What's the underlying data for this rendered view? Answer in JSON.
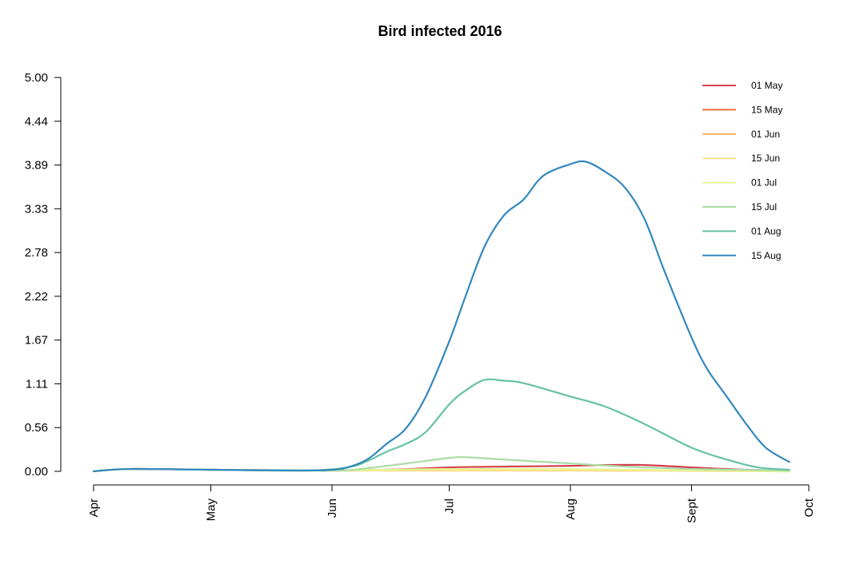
{
  "chart_data": {
    "type": "line",
    "title": "Bird infected 2016",
    "xlabel": "",
    "ylabel": "",
    "x_ticks": [
      "Apr",
      "May",
      "Jun",
      "Jul",
      "Aug",
      "Sept",
      "Oct"
    ],
    "xlim": [
      "2016-04-01",
      "2016-10-01"
    ],
    "y_ticks": [
      "0.00",
      "0.56",
      "1.11",
      "1.67",
      "2.22",
      "2.78",
      "3.33",
      "3.89",
      "4.44",
      "5.00"
    ],
    "ylim": [
      0,
      5
    ],
    "grid": false,
    "legend_position": "top-right",
    "series": [
      {
        "name": "01 May",
        "color": "#d53e4f",
        "points": [
          [
            "2016-04-01",
            0
          ],
          [
            "2016-04-10",
            0.03
          ],
          [
            "2016-05-01",
            0.02
          ],
          [
            "2016-06-01",
            0.01
          ],
          [
            "2016-06-15",
            0.02
          ],
          [
            "2016-07-01",
            0.05
          ],
          [
            "2016-07-15",
            0.06
          ],
          [
            "2016-08-01",
            0.07
          ],
          [
            "2016-08-10",
            0.08
          ],
          [
            "2016-08-20",
            0.08
          ],
          [
            "2016-09-01",
            0.05
          ],
          [
            "2016-09-15",
            0.02
          ],
          [
            "2016-09-26",
            0.01
          ]
        ]
      },
      {
        "name": "15 May",
        "color": "#f46d43",
        "points": [
          [
            "2016-04-01",
            0
          ],
          [
            "2016-04-10",
            0.03
          ],
          [
            "2016-05-01",
            0.02
          ],
          [
            "2016-06-01",
            0.01
          ],
          [
            "2016-06-15",
            0.02
          ],
          [
            "2016-07-01",
            0.03
          ],
          [
            "2016-08-01",
            0.02
          ],
          [
            "2016-09-01",
            0.01
          ],
          [
            "2016-09-26",
            0.0
          ]
        ]
      },
      {
        "name": "01 Jun",
        "color": "#fdae61",
        "points": [
          [
            "2016-04-01",
            0
          ],
          [
            "2016-04-10",
            0.03
          ],
          [
            "2016-05-01",
            0.02
          ],
          [
            "2016-06-01",
            0.01
          ],
          [
            "2016-06-15",
            0.01
          ],
          [
            "2016-07-01",
            0.01
          ],
          [
            "2016-08-01",
            0.01
          ],
          [
            "2016-09-26",
            0.0
          ]
        ]
      },
      {
        "name": "15 Jun",
        "color": "#fee08b",
        "points": [
          [
            "2016-04-01",
            0
          ],
          [
            "2016-04-10",
            0.03
          ],
          [
            "2016-05-01",
            0.02
          ],
          [
            "2016-06-01",
            0.01
          ],
          [
            "2016-06-15",
            0.01
          ],
          [
            "2016-07-01",
            0.01
          ],
          [
            "2016-08-01",
            0.01
          ],
          [
            "2016-09-26",
            0.0
          ]
        ]
      },
      {
        "name": "01 Jul",
        "color": "#e6f598",
        "points": [
          [
            "2016-04-01",
            0
          ],
          [
            "2016-04-10",
            0.03
          ],
          [
            "2016-05-01",
            0.02
          ],
          [
            "2016-06-01",
            0.01
          ],
          [
            "2016-06-15",
            0.02
          ],
          [
            "2016-07-01",
            0.03
          ],
          [
            "2016-08-01",
            0.03
          ],
          [
            "2016-09-01",
            0.01
          ],
          [
            "2016-09-26",
            0.0
          ]
        ]
      },
      {
        "name": "15 Jul",
        "color": "#abdda4",
        "points": [
          [
            "2016-04-01",
            0
          ],
          [
            "2016-04-10",
            0.03
          ],
          [
            "2016-05-01",
            0.02
          ],
          [
            "2016-06-01",
            0.01
          ],
          [
            "2016-06-10",
            0.04
          ],
          [
            "2016-06-20",
            0.1
          ],
          [
            "2016-07-01",
            0.17
          ],
          [
            "2016-07-05",
            0.18
          ],
          [
            "2016-07-15",
            0.15
          ],
          [
            "2016-08-01",
            0.1
          ],
          [
            "2016-08-15",
            0.06
          ],
          [
            "2016-09-01",
            0.03
          ],
          [
            "2016-09-26",
            0.01
          ]
        ]
      },
      {
        "name": "01 Aug",
        "color": "#66c2a5",
        "points": [
          [
            "2016-04-01",
            0
          ],
          [
            "2016-04-10",
            0.03
          ],
          [
            "2016-05-01",
            0.02
          ],
          [
            "2016-05-25",
            0.01
          ],
          [
            "2016-06-05",
            0.05
          ],
          [
            "2016-06-10",
            0.13
          ],
          [
            "2016-06-15",
            0.25
          ],
          [
            "2016-06-20",
            0.35
          ],
          [
            "2016-06-25",
            0.5
          ],
          [
            "2016-07-01",
            0.85
          ],
          [
            "2016-07-05",
            1.02
          ],
          [
            "2016-07-10",
            1.16
          ],
          [
            "2016-07-15",
            1.15
          ],
          [
            "2016-07-20",
            1.12
          ],
          [
            "2016-08-01",
            0.95
          ],
          [
            "2016-08-10",
            0.82
          ],
          [
            "2016-08-20",
            0.6
          ],
          [
            "2016-09-01",
            0.3
          ],
          [
            "2016-09-10",
            0.15
          ],
          [
            "2016-09-18",
            0.05
          ],
          [
            "2016-09-26",
            0.02
          ]
        ]
      },
      {
        "name": "15 Aug",
        "color": "#3288bd",
        "points": [
          [
            "2016-04-01",
            0
          ],
          [
            "2016-04-10",
            0.03
          ],
          [
            "2016-05-01",
            0.02
          ],
          [
            "2016-05-25",
            0.01
          ],
          [
            "2016-06-01",
            0.02
          ],
          [
            "2016-06-05",
            0.05
          ],
          [
            "2016-06-10",
            0.15
          ],
          [
            "2016-06-15",
            0.35
          ],
          [
            "2016-06-20",
            0.55
          ],
          [
            "2016-06-25",
            0.95
          ],
          [
            "2016-07-01",
            1.65
          ],
          [
            "2016-07-05",
            2.2
          ],
          [
            "2016-07-10",
            2.85
          ],
          [
            "2016-07-15",
            3.25
          ],
          [
            "2016-07-20",
            3.45
          ],
          [
            "2016-07-25",
            3.75
          ],
          [
            "2016-08-01",
            3.9
          ],
          [
            "2016-08-05",
            3.93
          ],
          [
            "2016-08-10",
            3.8
          ],
          [
            "2016-08-15",
            3.6
          ],
          [
            "2016-08-20",
            3.2
          ],
          [
            "2016-08-25",
            2.55
          ],
          [
            "2016-09-01",
            1.7
          ],
          [
            "2016-09-05",
            1.3
          ],
          [
            "2016-09-10",
            0.95
          ],
          [
            "2016-09-15",
            0.6
          ],
          [
            "2016-09-20",
            0.3
          ],
          [
            "2016-09-26",
            0.12
          ]
        ]
      }
    ]
  }
}
